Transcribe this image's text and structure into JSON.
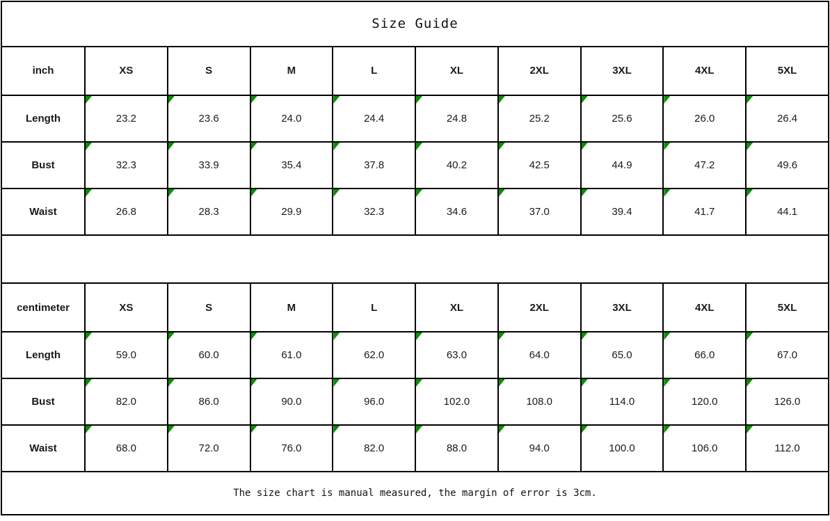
{
  "title": "Size Guide",
  "footer_note": "The size chart is manual measured, the margin of error is 3cm.",
  "colors": {
    "background": "#ffffff",
    "border": "#000000",
    "text": "#1a1a1a",
    "marker_green": "#089000"
  },
  "chart_data": {
    "type": "table",
    "title": "Size Guide",
    "tables": [
      {
        "unit_label": "inch",
        "columns": [
          "XS",
          "S",
          "M",
          "L",
          "XL",
          "2XL",
          "3XL",
          "4XL",
          "5XL"
        ],
        "rows": [
          {
            "label": "Length",
            "values": [
              "23.2",
              "23.6",
              "24.0",
              "24.4",
              "24.8",
              "25.2",
              "25.6",
              "26.0",
              "26.4"
            ]
          },
          {
            "label": "Bust",
            "values": [
              "32.3",
              "33.9",
              "35.4",
              "37.8",
              "40.2",
              "42.5",
              "44.9",
              "47.2",
              "49.6"
            ]
          },
          {
            "label": "Waist",
            "values": [
              "26.8",
              "28.3",
              "29.9",
              "32.3",
              "34.6",
              "37.0",
              "39.4",
              "41.7",
              "44.1"
            ]
          }
        ]
      },
      {
        "unit_label": "centimeter",
        "columns": [
          "XS",
          "S",
          "M",
          "L",
          "XL",
          "2XL",
          "3XL",
          "4XL",
          "5XL"
        ],
        "rows": [
          {
            "label": "Length",
            "values": [
              "59.0",
              "60.0",
              "61.0",
              "62.0",
              "63.0",
              "64.0",
              "65.0",
              "66.0",
              "67.0"
            ]
          },
          {
            "label": "Bust",
            "values": [
              "82.0",
              "86.0",
              "90.0",
              "96.0",
              "102.0",
              "108.0",
              "114.0",
              "120.0",
              "126.0"
            ]
          },
          {
            "label": "Waist",
            "values": [
              "68.0",
              "72.0",
              "76.0",
              "82.0",
              "88.0",
              "94.0",
              "100.0",
              "106.0",
              "112.0"
            ]
          }
        ]
      }
    ]
  }
}
